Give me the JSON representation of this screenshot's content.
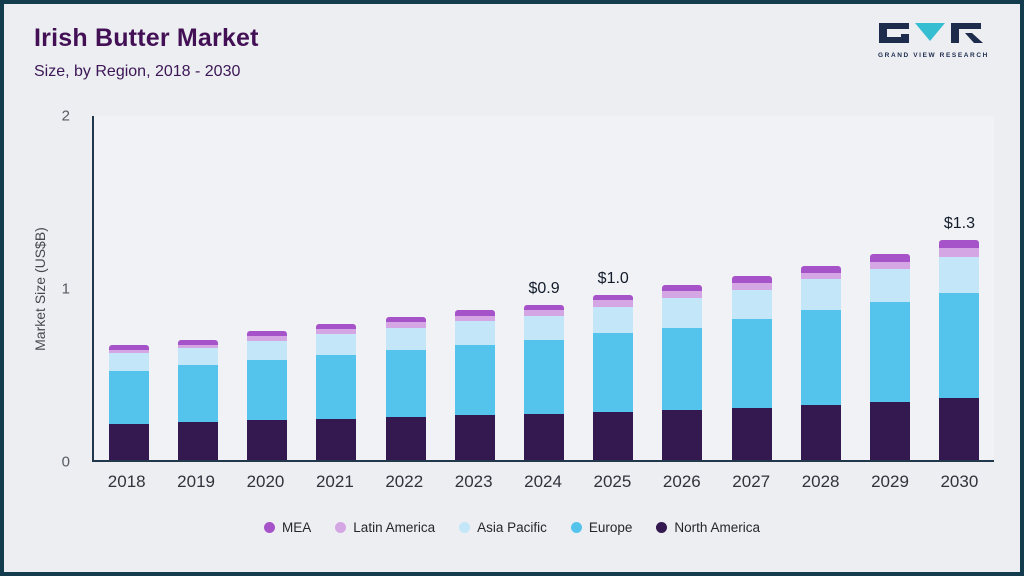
{
  "header": {
    "title": "Irish Butter Market",
    "subtitle": "Size, by Region, 2018 - 2030"
  },
  "logo": {
    "text": "GRAND VIEW RESEARCH",
    "mark_dark_color": "#1d2b4d",
    "mark_teal_color": "#35bdd2"
  },
  "chart_data": {
    "type": "bar",
    "stacked": true,
    "title": "Irish Butter Market Size, by Region, 2018 - 2030",
    "xlabel": "",
    "ylabel": "Market Size (US$B)",
    "ylim": [
      0,
      2
    ],
    "yticks": [
      0,
      1,
      2
    ],
    "grid": false,
    "legend_position": "bottom",
    "categories": [
      "2018",
      "2019",
      "2020",
      "2021",
      "2022",
      "2023",
      "2024",
      "2025",
      "2026",
      "2027",
      "2028",
      "2029",
      "2030"
    ],
    "series": [
      {
        "name": "North America",
        "color": "#33194f",
        "values": [
          0.21,
          0.22,
          0.23,
          0.24,
          0.25,
          0.26,
          0.27,
          0.28,
          0.29,
          0.3,
          0.32,
          0.34,
          0.36
        ]
      },
      {
        "name": "Europe",
        "color": "#55c4ec",
        "values": [
          0.31,
          0.33,
          0.35,
          0.37,
          0.39,
          0.41,
          0.43,
          0.46,
          0.48,
          0.52,
          0.55,
          0.58,
          0.61
        ]
      },
      {
        "name": "Asia Pacific",
        "color": "#c3e7f8",
        "values": [
          0.1,
          0.1,
          0.11,
          0.12,
          0.13,
          0.14,
          0.14,
          0.15,
          0.17,
          0.17,
          0.18,
          0.19,
          0.21
        ]
      },
      {
        "name": "Latin America",
        "color": "#d5a6e4",
        "values": [
          0.02,
          0.02,
          0.03,
          0.03,
          0.03,
          0.03,
          0.03,
          0.04,
          0.04,
          0.04,
          0.04,
          0.04,
          0.05
        ]
      },
      {
        "name": "MEA",
        "color": "#a653c9",
        "values": [
          0.03,
          0.03,
          0.03,
          0.03,
          0.03,
          0.03,
          0.03,
          0.03,
          0.04,
          0.04,
          0.04,
          0.05,
          0.05
        ]
      }
    ],
    "annotations": [
      {
        "category": "2024",
        "label": "$0.9"
      },
      {
        "category": "2025",
        "label": "$1.0"
      },
      {
        "category": "2030",
        "label": "$1.3"
      }
    ],
    "legend_order": [
      "MEA",
      "Latin America",
      "Asia Pacific",
      "Europe",
      "North America"
    ]
  }
}
